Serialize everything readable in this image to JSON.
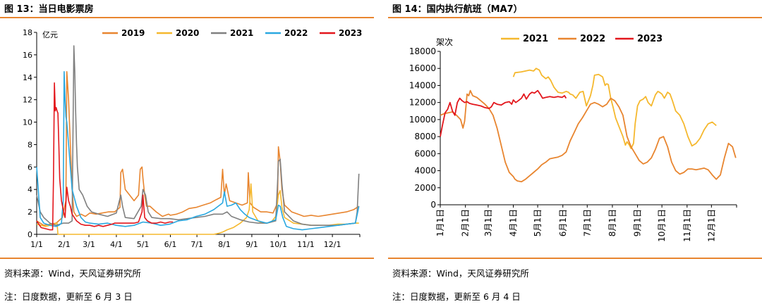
{
  "left": {
    "title": "图 13：当日电影票房",
    "source": "资料来源：Wind，天风证券研究所",
    "note": "注：日度数据，更新至 6 月 3 日"
  },
  "right": {
    "title": "图 14：国内执行航班（MA7）",
    "source": "资料来源：Wind，天风证券研究所",
    "note": "注：日度数据，更新至 6 月 4 日"
  },
  "chart_data": [
    {
      "type": "line",
      "ylabel": "亿元",
      "ylim": [
        0,
        18
      ],
      "yticks": [
        0,
        2,
        4,
        6,
        8,
        10,
        12,
        14,
        16,
        18
      ],
      "xlim": [
        0,
        365
      ],
      "xticks": [
        {
          "label": "1/1",
          "x": 0
        },
        {
          "label": "2/1",
          "x": 31
        },
        {
          "label": "3/1",
          "x": 59
        },
        {
          "label": "4/1",
          "x": 90
        },
        {
          "label": "5/1",
          "x": 120
        },
        {
          "label": "6/1",
          "x": 151
        },
        {
          "label": "7/1",
          "x": 181
        },
        {
          "label": "8/1",
          "x": 212
        },
        {
          "label": "9/1",
          "x": 243
        },
        {
          "label": "10/1",
          "x": 273
        },
        {
          "label": "11/1",
          "x": 304
        },
        {
          "label": "12/1",
          "x": 334
        }
      ],
      "legend_position": "top",
      "series": [
        {
          "name": "2019",
          "color": "#e8852f",
          "x": [
            0,
            8,
            15,
            22,
            29,
            33,
            34,
            36,
            38,
            40,
            42,
            45,
            50,
            55,
            60,
            67,
            74,
            81,
            88,
            94,
            95,
            97,
            100,
            110,
            115,
            117,
            119,
            120,
            122,
            124,
            128,
            135,
            142,
            149,
            151,
            158,
            165,
            172,
            180,
            188,
            196,
            203,
            208,
            210,
            212,
            214,
            218,
            225,
            232,
            238,
            239,
            241,
            245,
            253,
            260,
            267,
            272,
            273,
            275,
            277,
            280,
            288,
            295,
            302,
            310,
            318,
            326,
            334,
            342,
            350,
            358,
            364
          ],
          "y": [
            1.2,
            0.8,
            0.9,
            1.0,
            1.5,
            3.0,
            14.5,
            12.0,
            8.0,
            4.0,
            2.0,
            1.6,
            1.8,
            1.6,
            1.9,
            1.8,
            1.9,
            2.0,
            2.0,
            2.4,
            5.5,
            5.8,
            4.0,
            3.0,
            3.5,
            5.8,
            6.0,
            5.0,
            3.5,
            2.5,
            2.5,
            2.0,
            1.6,
            1.8,
            1.7,
            1.8,
            2.0,
            2.3,
            2.4,
            2.6,
            2.8,
            3.1,
            3.3,
            5.8,
            3.5,
            4.5,
            3.0,
            2.8,
            2.6,
            2.8,
            5.5,
            2.8,
            2.4,
            2.0,
            2.0,
            1.9,
            2.8,
            7.8,
            6.5,
            4.0,
            2.6,
            2.0,
            1.8,
            1.6,
            1.7,
            1.6,
            1.7,
            1.8,
            1.9,
            2.0,
            2.2,
            2.5
          ]
        },
        {
          "name": "2020",
          "color": "#f5b82e",
          "x": [
            0,
            5,
            10,
            15,
            20,
            23,
            24,
            26,
            28,
            30,
            32,
            35,
            60,
            90,
            120,
            150,
            180,
            200,
            203,
            206,
            210,
            215,
            222,
            230,
            237,
            240,
            242,
            244,
            250,
            255,
            260,
            265,
            270,
            273,
            275,
            277,
            280,
            290,
            300,
            310,
            320,
            330,
            340,
            350,
            360,
            364
          ],
          "y": [
            0.9,
            0.8,
            0.7,
            0.8,
            0.9,
            1.0,
            0,
            0,
            0,
            0,
            0,
            0,
            0,
            0,
            0,
            0,
            0,
            0,
            0.05,
            0.1,
            0.2,
            0.4,
            0.6,
            1.0,
            1.5,
            2.2,
            4.5,
            2.0,
            1.2,
            1.0,
            1.0,
            1.1,
            1.6,
            3.5,
            3.9,
            2.4,
            1.5,
            1.0,
            0.9,
            0.8,
            0.8,
            0.8,
            0.9,
            0.9,
            1.0,
            1.0
          ]
        },
        {
          "name": "2021",
          "color": "#808080",
          "x": [
            0,
            4,
            8,
            15,
            22,
            30,
            36,
            40,
            42,
            43,
            44,
            45,
            46,
            48,
            52,
            57,
            62,
            70,
            80,
            90,
            95,
            97,
            100,
            110,
            118,
            120,
            123,
            126,
            130,
            140,
            150,
            160,
            170,
            180,
            190,
            200,
            210,
            215,
            220,
            230,
            240,
            250,
            260,
            270,
            272,
            273,
            275,
            277,
            280,
            290,
            300,
            310,
            320,
            330,
            340,
            350,
            360,
            362,
            364
          ],
          "y": [
            3.5,
            2.0,
            1.5,
            1.0,
            0.8,
            1.0,
            1.0,
            1.2,
            16.8,
            14.5,
            11.0,
            8.0,
            6.0,
            4.0,
            3.5,
            2.5,
            2.0,
            1.8,
            1.6,
            1.9,
            3.5,
            2.5,
            1.5,
            1.4,
            2.5,
            4.0,
            3.5,
            2.0,
            1.5,
            1.4,
            1.4,
            1.3,
            1.4,
            1.5,
            1.6,
            1.8,
            1.8,
            2.0,
            1.6,
            1.3,
            1.1,
            1.0,
            1.0,
            1.2,
            4.5,
            6.5,
            6.7,
            4.5,
            2.0,
            1.2,
            0.9,
            0.8,
            0.8,
            0.8,
            0.8,
            0.9,
            1.0,
            2.0,
            5.4
          ]
        },
        {
          "name": "2022",
          "color": "#2aa8e0",
          "x": [
            0,
            4,
            8,
            15,
            22,
            25,
            28,
            30,
            31,
            32,
            33,
            34,
            36,
            38,
            40,
            45,
            50,
            55,
            60,
            70,
            80,
            90,
            100,
            110,
            120,
            130,
            140,
            150,
            160,
            170,
            180,
            190,
            200,
            210,
            212,
            215,
            220,
            225,
            230,
            235,
            240,
            250,
            260,
            270,
            273,
            275,
            278,
            282,
            290,
            300,
            310,
            320,
            330,
            340,
            350,
            360,
            364
          ],
          "y": [
            6.0,
            1.5,
            1.0,
            0.8,
            0.7,
            0.8,
            1.0,
            3.0,
            14.5,
            12.0,
            10.5,
            10.0,
            8.0,
            6.0,
            4.0,
            2.5,
            1.5,
            1.1,
            1.0,
            0.9,
            1.0,
            0.8,
            0.7,
            0.8,
            1.1,
            1.0,
            0.8,
            0.9,
            1.2,
            1.3,
            1.6,
            1.8,
            2.2,
            2.8,
            3.8,
            2.5,
            2.6,
            2.8,
            2.2,
            1.8,
            1.5,
            1.2,
            1.0,
            1.3,
            2.6,
            2.5,
            1.5,
            0.7,
            0.5,
            0.4,
            0.5,
            0.6,
            0.7,
            0.8,
            0.9,
            1.0,
            2.5
          ]
        },
        {
          "name": "2023",
          "color": "#e3161c",
          "x": [
            0,
            5,
            10,
            15,
            18,
            19,
            20,
            21,
            22,
            23,
            24,
            25,
            26,
            28,
            30,
            31,
            32,
            34,
            36,
            38,
            40,
            45,
            50,
            55,
            60,
            65,
            70,
            75,
            80,
            85,
            88,
            90,
            95,
            100,
            105,
            110,
            115,
            119,
            120,
            121,
            122,
            125,
            130,
            135,
            140,
            145,
            150,
            154
          ],
          "y": [
            1.2,
            0.6,
            0.5,
            0.4,
            0.4,
            5.0,
            13.5,
            11.0,
            11.3,
            11.0,
            10.8,
            8.0,
            5.0,
            3.0,
            2.2,
            1.8,
            1.5,
            4.2,
            3.0,
            2.5,
            1.8,
            1.2,
            0.9,
            0.8,
            0.8,
            0.7,
            0.8,
            0.7,
            0.8,
            0.9,
            1.0,
            1.0,
            1.0,
            1.0,
            1.0,
            1.0,
            1.1,
            2.0,
            3.5,
            2.5,
            1.5,
            1.2,
            1.0,
            1.0,
            1.1,
            1.0,
            1.1,
            1.1
          ]
        }
      ]
    },
    {
      "type": "line",
      "ylabel": "架次",
      "ylim": [
        0,
        18000
      ],
      "yticks": [
        0,
        2000,
        4000,
        6000,
        8000,
        10000,
        12000,
        14000,
        16000,
        18000
      ],
      "xlim": [
        0,
        365
      ],
      "xticks": [
        {
          "label": "1月1日",
          "x": 0
        },
        {
          "label": "2月1日",
          "x": 31
        },
        {
          "label": "3月1日",
          "x": 59
        },
        {
          "label": "4月1日",
          "x": 90
        },
        {
          "label": "5月1日",
          "x": 120
        },
        {
          "label": "6月1日",
          "x": 151
        },
        {
          "label": "7月1日",
          "x": 181
        },
        {
          "label": "8月1日",
          "x": 212
        },
        {
          "label": "9月1日",
          "x": 243
        },
        {
          "label": "10月1日",
          "x": 273
        },
        {
          "label": "11月1日",
          "x": 304
        },
        {
          "label": "12月1日",
          "x": 334
        }
      ],
      "legend_position": "top",
      "series": [
        {
          "name": "2021",
          "color": "#f5b82e",
          "x": [
            90,
            92,
            100,
            110,
            115,
            118,
            120,
            122,
            125,
            130,
            133,
            136,
            140,
            145,
            150,
            155,
            158,
            160,
            163,
            167,
            172,
            176,
            180,
            185,
            188,
            190,
            195,
            200,
            203,
            205,
            207,
            210,
            213,
            216,
            220,
            225,
            228,
            230,
            233,
            235,
            238,
            240,
            243,
            246,
            250,
            253,
            256,
            260,
            265,
            268,
            270,
            273,
            276,
            280,
            283,
            286,
            288,
            290,
            295,
            300,
            305,
            310,
            315,
            320,
            325,
            330,
            335,
            340
          ],
          "y": [
            15000,
            15500,
            15600,
            15800,
            15700,
            16000,
            15900,
            15800,
            15200,
            14800,
            15000,
            14600,
            13800,
            13200,
            13100,
            13300,
            13200,
            13000,
            12900,
            12500,
            13200,
            13300,
            11600,
            12800,
            14000,
            15200,
            15300,
            15000,
            14000,
            14200,
            14100,
            12500,
            11400,
            10200,
            9200,
            8000,
            7000,
            7400,
            7000,
            6600,
            7200,
            9500,
            11600,
            12200,
            12400,
            12700,
            12000,
            11600,
            12900,
            13300,
            13200,
            13000,
            12500,
            13200,
            13000,
            12200,
            11600,
            11000,
            10500,
            9500,
            8000,
            6900,
            7200,
            7800,
            8800,
            9500,
            9700,
            9300
          ]
        },
        {
          "name": "2022",
          "color": "#e8852f",
          "x": [
            0,
            5,
            10,
            15,
            20,
            25,
            28,
            30,
            33,
            35,
            37,
            40,
            45,
            50,
            55,
            60,
            65,
            70,
            75,
            80,
            85,
            90,
            92,
            95,
            100,
            105,
            110,
            115,
            120,
            125,
            130,
            135,
            140,
            145,
            150,
            155,
            160,
            165,
            170,
            175,
            180,
            185,
            190,
            195,
            200,
            205,
            210,
            215,
            220,
            225,
            230,
            235,
            240,
            245,
            250,
            255,
            260,
            265,
            270,
            275,
            280,
            285,
            290,
            295,
            300,
            305,
            310,
            315,
            320,
            325,
            330,
            335,
            340,
            345,
            350,
            355,
            360,
            364
          ],
          "y": [
            10500,
            10700,
            10800,
            10900,
            10500,
            10000,
            9000,
            9800,
            13000,
            12800,
            13400,
            12800,
            12600,
            12200,
            11800,
            11300,
            10500,
            9000,
            7000,
            5000,
            3800,
            3300,
            3000,
            2800,
            2700,
            3000,
            3400,
            3800,
            4200,
            4700,
            5000,
            5400,
            5500,
            5600,
            5800,
            6200,
            7500,
            8500,
            9500,
            10200,
            11000,
            11800,
            12000,
            11800,
            11500,
            11800,
            12500,
            12200,
            11500,
            10500,
            8000,
            6800,
            6000,
            5200,
            4800,
            5000,
            5500,
            6500,
            7800,
            8000,
            6800,
            5000,
            4000,
            3600,
            3800,
            4200,
            4200,
            4100,
            4200,
            4300,
            4100,
            3500,
            3000,
            3500,
            5500,
            7200,
            6800,
            5500
          ]
        },
        {
          "name": "2023",
          "color": "#e3161c",
          "x": [
            0,
            3,
            6,
            9,
            12,
            15,
            18,
            21,
            24,
            27,
            30,
            33,
            36,
            40,
            45,
            50,
            55,
            60,
            63,
            66,
            70,
            75,
            80,
            85,
            88,
            90,
            93,
            96,
            100,
            103,
            106,
            110,
            113,
            116,
            120,
            123,
            126,
            130,
            135,
            140,
            145,
            150,
            153,
            155
          ],
          "y": [
            8000,
            9500,
            10800,
            11200,
            12000,
            11000,
            10500,
            12000,
            12500,
            12200,
            12000,
            12100,
            11900,
            11800,
            11700,
            11600,
            11400,
            11300,
            11500,
            12000,
            11800,
            11700,
            12000,
            12100,
            11800,
            12300,
            12000,
            12200,
            12500,
            13000,
            12400,
            13000,
            13200,
            13100,
            13400,
            13000,
            12500,
            12600,
            12700,
            12600,
            12700,
            12600,
            12800,
            12500
          ]
        }
      ]
    }
  ]
}
